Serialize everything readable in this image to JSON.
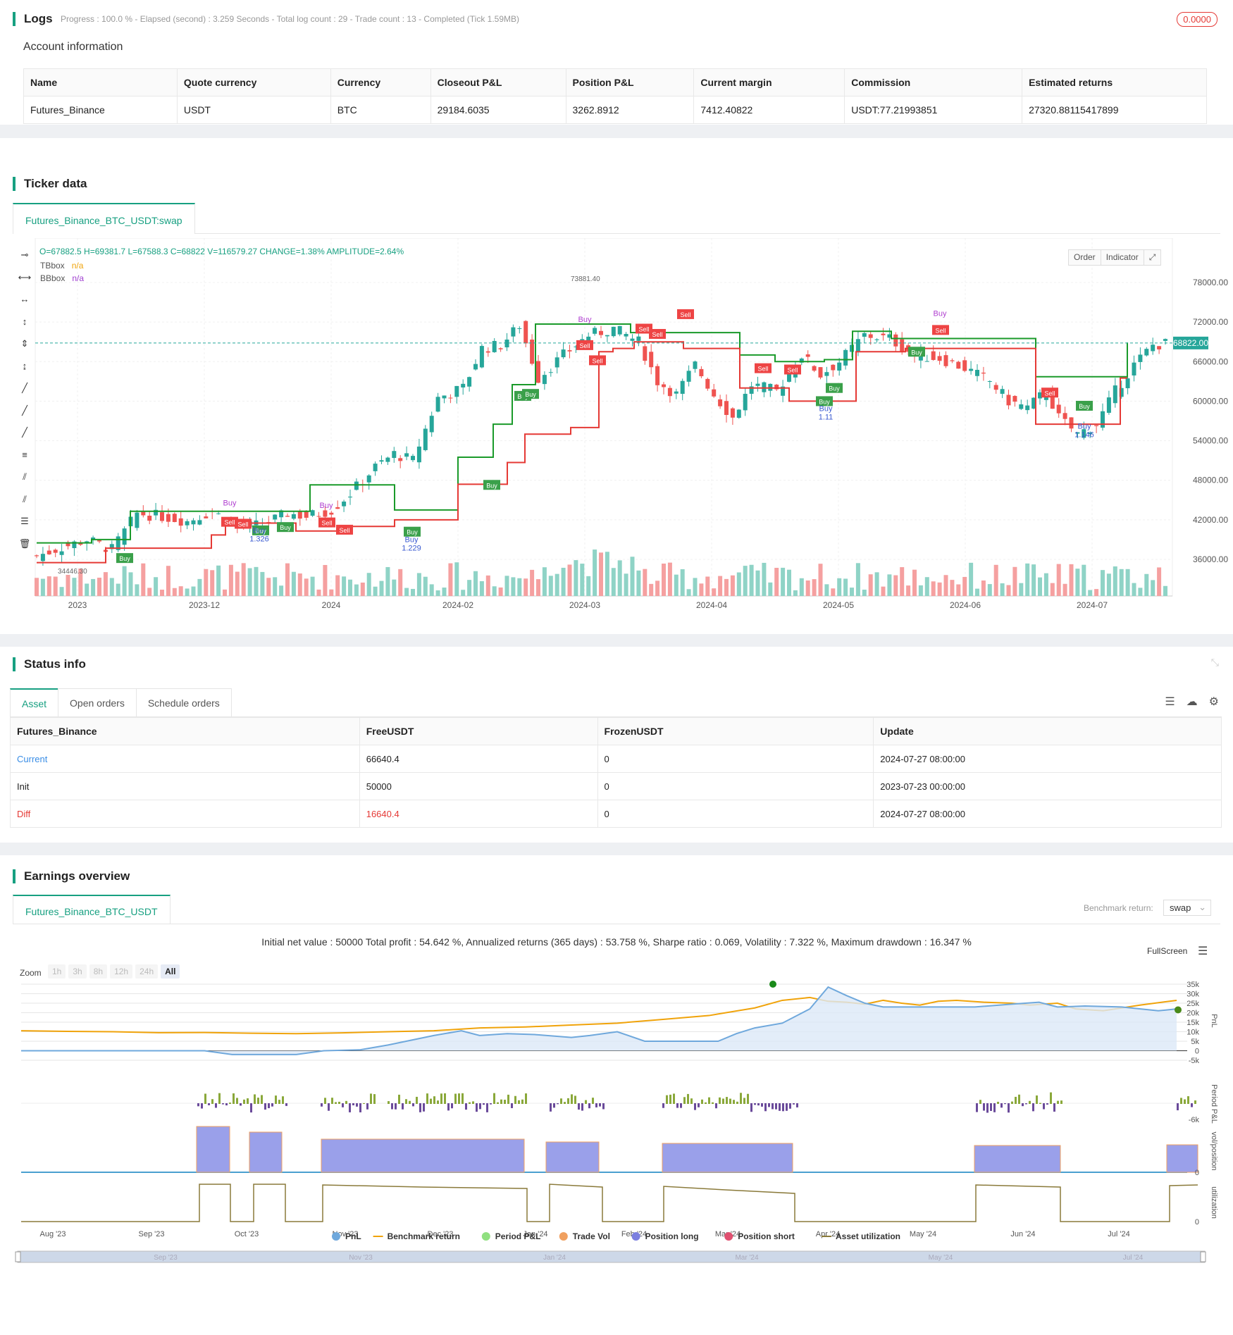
{
  "logs": {
    "title": "Logs",
    "status": "Progress : 100.0 % - Elapsed (second) : 3.259  Seconds - Total log count : 29 - Trade count : 13 - Completed (Tick 1.59MB)",
    "badge": "0.0000"
  },
  "account": {
    "title": "Account information",
    "headers": [
      "Name",
      "Quote currency",
      "Currency",
      "Closeout P&L",
      "Position P&L",
      "Current margin",
      "Commission",
      "Estimated returns"
    ],
    "row": [
      "Futures_Binance",
      "USDT",
      "BTC",
      "29184.6035",
      "3262.8912",
      "7412.40822",
      "USDT:77.21993851",
      "27320.88115417899"
    ]
  },
  "ticker": {
    "title": "Ticker data",
    "tab": "Futures_Binance_BTC_USDT:swap",
    "ohlc": "O=67882.5 H=69381.7 L=67588.3 C=68822 V=116579.27 CHANGE=1.38% AMPLITUDE=2.64%",
    "legend": [
      {
        "name": "TBbox",
        "value": "n/a"
      },
      {
        "name": "BBbox",
        "value": "n/a"
      }
    ],
    "btn_order": "Order",
    "btn_indicator": "Indicator",
    "price_ticks": [
      "78000.00",
      "72000.00",
      "66000.00",
      "60000.00",
      "54000.00",
      "48000.00",
      "42000.00",
      "36000.00"
    ],
    "current_price": "68822.00",
    "date_ticks": [
      "2023",
      "2023-12",
      "2024",
      "2024-02",
      "2024-03",
      "2024-04",
      "2024-05",
      "2024-06",
      "2024-07"
    ],
    "high_label": "73881.40",
    "low_label": "34446.30",
    "annotations": [
      "Buy",
      "Sell",
      "Buy",
      "1.326",
      "1.229",
      "1.11",
      "1.146"
    ]
  },
  "status": {
    "title": "Status info",
    "tabs": [
      "Asset",
      "Open orders",
      "Schedule orders"
    ],
    "headers": [
      "Futures_Binance",
      "FreeUSDT",
      "FrozenUSDT",
      "Update"
    ],
    "rows": [
      [
        "Current",
        "66640.4",
        "0",
        "2024-07-27 08:00:00"
      ],
      [
        "Init",
        "50000",
        "0",
        "2023-07-23 00:00:00"
      ],
      [
        "Diff",
        "16640.4",
        "0",
        "2024-07-27 08:00:00"
      ]
    ]
  },
  "earnings": {
    "title": "Earnings overview",
    "tab": "Futures_Binance_BTC_USDT",
    "benchmark_label": "Benchmark return:",
    "benchmark_value": "swap",
    "summary": "Initial net value : 50000 Total profit : 54.642 %, Annualized returns (365 days) : 53.758 %, Sharpe ratio : 0.069, Volatility : 7.322 %, Maximum drawdown : 16.347 %",
    "fullscreen": "FullScreen",
    "zoom_label": "Zoom",
    "zoom_options": [
      "1h",
      "3h",
      "8h",
      "12h",
      "24h",
      "All"
    ],
    "pnl_ticks": [
      "35k",
      "30k",
      "25k",
      "20k",
      "15k",
      "10k",
      "5k",
      "0",
      "-5k"
    ],
    "axis_titles": [
      "PnL",
      "Period P&L",
      "vol/position",
      "utilization"
    ],
    "period_tick": "-6k",
    "util_tick": "0",
    "vol_tick": "0",
    "x_ticks": [
      "Aug '23",
      "Sep '23",
      "Oct '23",
      "Nov '23",
      "Dec '23",
      "Jan '24",
      "Feb '24",
      "Mar '24",
      "Apr '24",
      "May '24",
      "Jun '24",
      "Jul '24"
    ],
    "nav_ticks": [
      "Sep '23",
      "Nov '23",
      "Jan '24",
      "Mar '24",
      "May '24",
      "Jul '24"
    ],
    "legend": [
      {
        "name": "PnL",
        "color": "#6fa8dc"
      },
      {
        "name": "Benchmark return",
        "color": "#f0a30a"
      },
      {
        "name": "Period P&L",
        "color": "#90e080"
      },
      {
        "name": "Trade Vol",
        "color": "#f0a060"
      },
      {
        "name": "Position long",
        "color": "#7b7fe0"
      },
      {
        "name": "Position short",
        "color": "#e05070"
      },
      {
        "name": "Asset utilization",
        "color": "#8a7a3a"
      }
    ]
  },
  "colors": {
    "accent": "#17a081",
    "up": "#26a69a",
    "down": "#ef5350",
    "green_line": "#1a9a2a",
    "red_line": "#e53935"
  }
}
